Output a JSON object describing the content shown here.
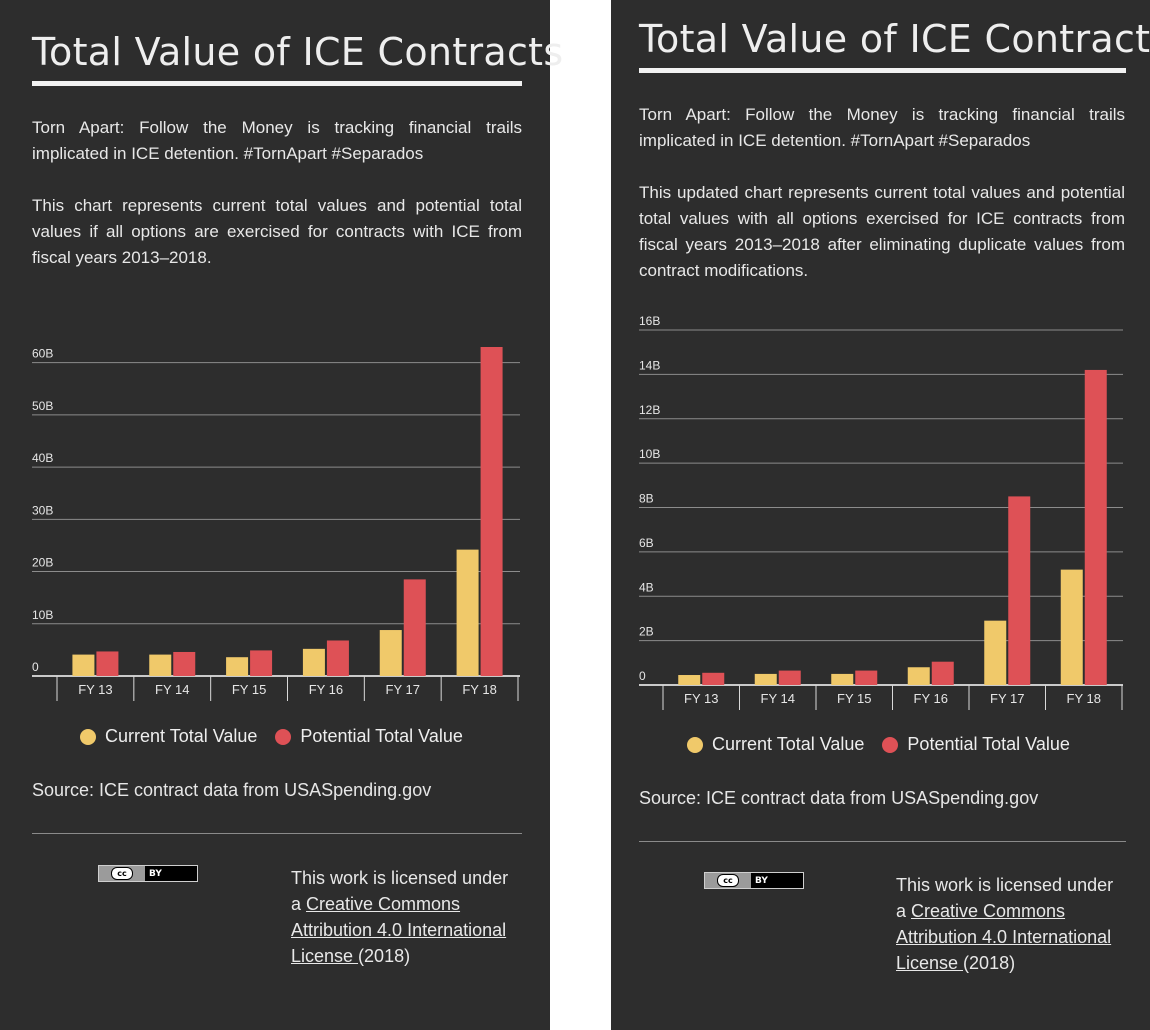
{
  "colors": {
    "current": "#f0c96a",
    "potential": "#de5156",
    "background": "#2d2d2d"
  },
  "panels": [
    {
      "title": "Total Value of ICE Contracts",
      "intro": "Torn Apart: Follow the Money is tracking financial trails implicated in ICE detention. #TornApart #Separados",
      "description": "This chart represents current total values and potential total values if all options are exercised for contracts with ICE from fiscal years 2013–2018.",
      "legend": {
        "current": "Current Total Value",
        "potential": "Potential Total Value"
      },
      "source": "Source: ICE contract data from USASpending.gov",
      "license": {
        "prefix": "This work is licensed under a ",
        "link": "Creative Commons Attribution 4.0 International License ",
        "suffix": "(2018)"
      },
      "cc_badge": {
        "icon": "cc-icon",
        "text": "BY"
      }
    },
    {
      "title": "Total Value of ICE Contracts",
      "intro": "Torn Apart: Follow the Money is tracking financial trails implicated in ICE detention. #TornApart #Separados",
      "description": "This updated chart represents current total values and potential total values with all options exercised for ICE contracts  from fiscal years 2013–2018 after eliminating duplicate values from contract modifications.",
      "legend": {
        "current": "Current Total Value",
        "potential": "Potential Total Value"
      },
      "source": "Source: ICE contract data from USASpending.gov",
      "license": {
        "prefix": "This work is licensed under a ",
        "link": "Creative Commons Attribution 4.0 International License ",
        "suffix": "(2018)"
      },
      "cc_badge": {
        "icon": "cc-icon",
        "text": "BY"
      }
    }
  ],
  "chart_data": [
    {
      "type": "bar",
      "categories": [
        "FY 13",
        "FY 14",
        "FY 15",
        "FY 16",
        "FY 17",
        "FY 18"
      ],
      "series": [
        {
          "name": "Current Total Value",
          "values": [
            4.1,
            4.1,
            3.6,
            5.2,
            8.8,
            24.2
          ]
        },
        {
          "name": "Potential Total Value",
          "values": [
            4.7,
            4.6,
            4.9,
            6.8,
            18.5,
            63.0
          ]
        }
      ],
      "yticks": [
        0,
        10,
        20,
        30,
        40,
        50,
        60
      ],
      "ytick_labels": [
        "0",
        "10B",
        "20B",
        "30B",
        "40B",
        "50B",
        "60B"
      ],
      "ylim": [
        0,
        63
      ],
      "grid": true,
      "legend_placement": "bottom-center"
    },
    {
      "type": "bar",
      "categories": [
        "FY 13",
        "FY 14",
        "FY 15",
        "FY 16",
        "FY 17",
        "FY 18"
      ],
      "series": [
        {
          "name": "Current Total Value",
          "values": [
            0.45,
            0.5,
            0.5,
            0.8,
            2.9,
            5.2
          ]
        },
        {
          "name": "Potential Total Value",
          "values": [
            0.55,
            0.65,
            0.65,
            1.05,
            8.5,
            14.2
          ]
        }
      ],
      "yticks": [
        0,
        2,
        4,
        6,
        8,
        10,
        12,
        14,
        16
      ],
      "ytick_labels": [
        "0",
        "2B",
        "4B",
        "6B",
        "8B",
        "10B",
        "12B",
        "14B",
        "16B"
      ],
      "ylim": [
        0,
        16
      ],
      "grid": true,
      "legend_placement": "bottom-center"
    }
  ]
}
